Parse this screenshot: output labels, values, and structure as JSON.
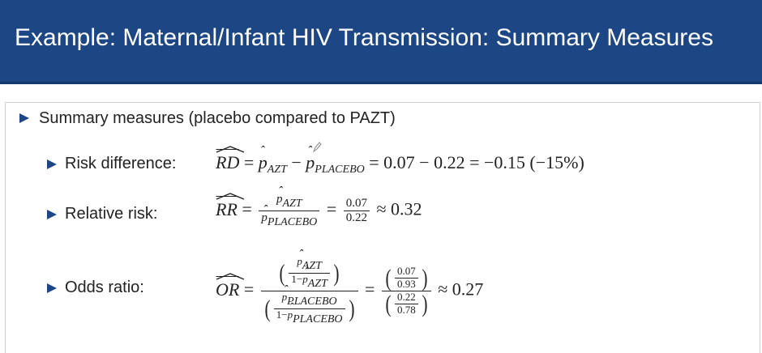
{
  "header": {
    "title": "Example: Maternal/Infant HIV Transmission: Summary Measures"
  },
  "bullets": {
    "main": "Summary measures (placebo compared to PAZT)",
    "risk_difference_label": "Risk difference:",
    "relative_risk_label": "Relative risk:",
    "odds_ratio_label": "Odds ratio:"
  },
  "formulas": {
    "rd": {
      "lhs": "RD",
      "p_azt_sub": "AZT",
      "p_placebo_sub": "PLACEBO",
      "rhs": "= 0.07 − 0.22 = −0.15 (−15%)"
    },
    "rr": {
      "lhs": "RR",
      "num_sub": "AZT",
      "den_sub": "PLACEBO",
      "frac_num": "0.07",
      "frac_den": "0.22",
      "result": "≈ 0.32"
    },
    "or": {
      "lhs": "OR",
      "inner_num_num_sub": "AZT",
      "inner_num_den": "1−",
      "inner_den_num_sub": "PLACEBO",
      "val_num_num": "0.07",
      "val_num_den": "0.93",
      "val_den_num": "0.22",
      "val_den_den": "0.78",
      "result": "≈ 0.27"
    }
  },
  "colors": {
    "header_bg": "#1c4684",
    "bullet": "#1c4684",
    "text": "#222222"
  },
  "icons": {
    "annotation": "pencil-icon"
  }
}
